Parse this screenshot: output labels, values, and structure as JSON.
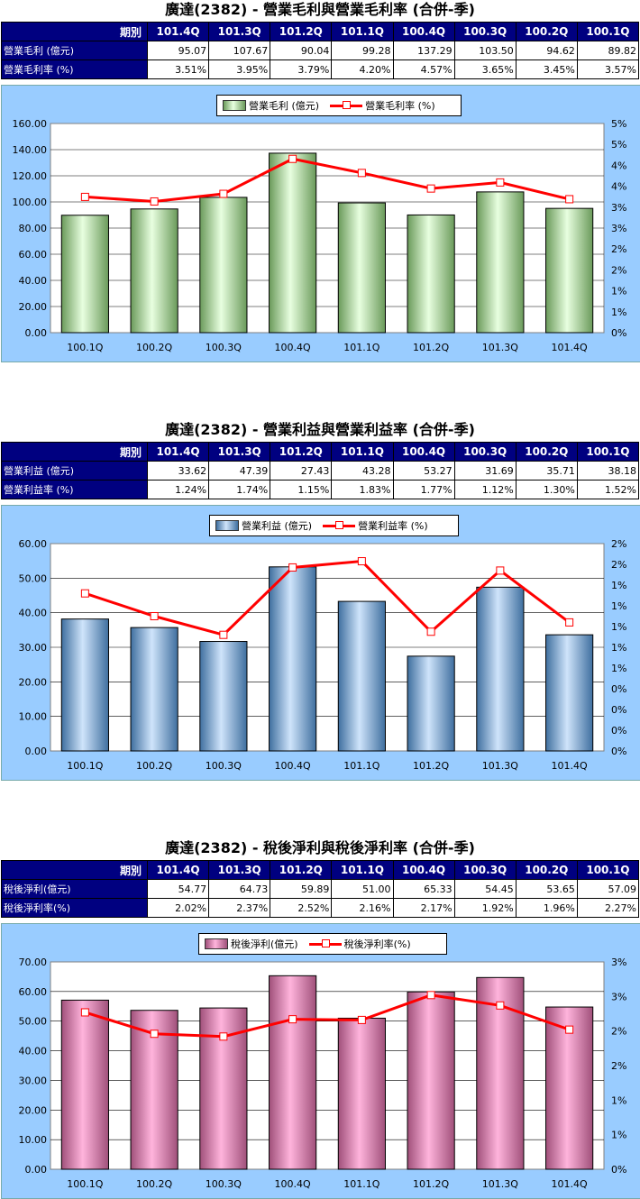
{
  "sections": [
    {
      "title": "廣達(2382) - 營業毛利與營業毛利率 (合併-季)",
      "table": {
        "period_label": "期別",
        "periods": [
          "101.4Q",
          "101.3Q",
          "101.2Q",
          "101.1Q",
          "100.4Q",
          "100.3Q",
          "100.2Q",
          "100.1Q"
        ],
        "rows": [
          {
            "label": "營業毛利 (億元)",
            "values": [
              "95.07",
              "107.67",
              "90.04",
              "99.28",
              "137.29",
              "103.50",
              "94.62",
              "89.82"
            ]
          },
          {
            "label": "營業毛利率 (%)",
            "values": [
              "3.51%",
              "3.95%",
              "3.79%",
              "4.20%",
              "4.57%",
              "3.65%",
              "3.45%",
              "3.57%"
            ]
          }
        ]
      },
      "legend": {
        "bar": "營業毛利 (億元)",
        "line": "營業毛利率 (%)"
      },
      "colors": {
        "bar_light": "#e8ffe0",
        "bar_dark": "#6a9a5a"
      }
    },
    {
      "title": "廣達(2382) - 營業利益與營業利益率 (合併-季)",
      "table": {
        "period_label": "期別",
        "periods": [
          "101.4Q",
          "101.3Q",
          "101.2Q",
          "101.1Q",
          "100.4Q",
          "100.3Q",
          "100.2Q",
          "100.1Q"
        ],
        "rows": [
          {
            "label": "營業利益 (億元)",
            "values": [
              "33.62",
              "47.39",
              "27.43",
              "43.28",
              "53.27",
              "31.69",
              "35.71",
              "38.18"
            ]
          },
          {
            "label": "營業利益率 (%)",
            "values": [
              "1.24%",
              "1.74%",
              "1.15%",
              "1.83%",
              "1.77%",
              "1.12%",
              "1.30%",
              "1.52%"
            ]
          }
        ]
      },
      "legend": {
        "bar": "營業利益 (億元)",
        "line": "營業利益率 (%)"
      },
      "colors": {
        "bar_light": "#cfe4fb",
        "bar_dark": "#3f6f9f"
      }
    },
    {
      "title": "廣達(2382) - 稅後淨利與稅後淨利率 (合併-季)",
      "table": {
        "period_label": "期別",
        "periods": [
          "101.4Q",
          "101.3Q",
          "101.2Q",
          "101.1Q",
          "100.4Q",
          "100.3Q",
          "100.2Q",
          "100.1Q"
        ],
        "rows": [
          {
            "label": "稅後淨利(億元)",
            "values": [
              "54.77",
              "64.73",
              "59.89",
              "51.00",
              "65.33",
              "54.45",
              "53.65",
              "57.09"
            ]
          },
          {
            "label": "稅後淨利率(%)",
            "values": [
              "2.02%",
              "2.37%",
              "2.52%",
              "2.16%",
              "2.17%",
              "1.92%",
              "1.96%",
              "2.27%"
            ]
          }
        ]
      },
      "legend": {
        "bar": "稅後淨利(億元)",
        "line": "稅後淨利率(%)"
      },
      "colors": {
        "bar_light": "#ffb4dc",
        "bar_dark": "#a0507a"
      }
    }
  ],
  "chart_data": [
    {
      "type": "bar",
      "categories": [
        "100.1Q",
        "100.2Q",
        "100.3Q",
        "100.4Q",
        "101.1Q",
        "101.2Q",
        "101.3Q",
        "101.4Q"
      ],
      "series": [
        {
          "name": "營業毛利 (億元)",
          "type": "bar",
          "values": [
            89.82,
            94.62,
            103.5,
            137.29,
            99.28,
            90.04,
            107.67,
            95.07
          ]
        },
        {
          "name": "營業毛利率 (%)",
          "type": "line",
          "axis": "right",
          "values": [
            3.57,
            3.45,
            3.65,
            4.57,
            4.2,
            3.79,
            3.95,
            3.51
          ]
        }
      ],
      "ylim": [
        0,
        160
      ],
      "y_ticks": [
        "0.00",
        "20.00",
        "40.00",
        "60.00",
        "80.00",
        "100.00",
        "120.00",
        "140.00",
        "160.00"
      ],
      "y2lim": [
        0,
        5.5
      ],
      "y2_ticks": [
        "0%",
        "1%",
        "1%",
        "2%",
        "2%",
        "3%",
        "3%",
        "4%",
        "4%",
        "5%",
        "5%"
      ],
      "legend_position": "top-center",
      "grid": true
    },
    {
      "type": "bar",
      "categories": [
        "100.1Q",
        "100.2Q",
        "100.3Q",
        "100.4Q",
        "101.1Q",
        "101.2Q",
        "101.3Q",
        "101.4Q"
      ],
      "series": [
        {
          "name": "營業利益 (億元)",
          "type": "bar",
          "values": [
            38.18,
            35.71,
            31.69,
            53.27,
            43.28,
            27.43,
            47.39,
            33.62
          ]
        },
        {
          "name": "營業利益率 (%)",
          "type": "line",
          "axis": "right",
          "values": [
            1.52,
            1.3,
            1.12,
            1.77,
            1.83,
            1.15,
            1.74,
            1.24
          ]
        }
      ],
      "ylim": [
        0,
        60
      ],
      "y_ticks": [
        "0.00",
        "10.00",
        "20.00",
        "30.00",
        "40.00",
        "50.00",
        "60.00"
      ],
      "y2lim": [
        0,
        2.0
      ],
      "y2_ticks": [
        "0%",
        "0%",
        "0%",
        "0%",
        "1%",
        "1%",
        "1%",
        "1%",
        "1%",
        "2%",
        "2%"
      ],
      "legend_position": "top-center",
      "grid": true
    },
    {
      "type": "bar",
      "categories": [
        "100.1Q",
        "100.2Q",
        "100.3Q",
        "100.4Q",
        "101.1Q",
        "101.2Q",
        "101.3Q",
        "101.4Q"
      ],
      "series": [
        {
          "name": "稅後淨利(億元)",
          "type": "bar",
          "values": [
            57.09,
            53.65,
            54.45,
            65.33,
            51.0,
            59.89,
            64.73,
            54.77
          ]
        },
        {
          "name": "稅後淨利率(%)",
          "type": "line",
          "axis": "right",
          "values": [
            2.27,
            1.96,
            1.92,
            2.17,
            2.16,
            2.52,
            2.37,
            2.02
          ]
        }
      ],
      "ylim": [
        0,
        70
      ],
      "y_ticks": [
        "0.00",
        "10.00",
        "20.00",
        "30.00",
        "40.00",
        "50.00",
        "60.00",
        "70.00"
      ],
      "y2lim": [
        0,
        3.0
      ],
      "y2_ticks": [
        "0%",
        "1%",
        "1%",
        "2%",
        "2%",
        "3%",
        "3%"
      ],
      "legend_position": "top-center",
      "grid": true
    }
  ]
}
